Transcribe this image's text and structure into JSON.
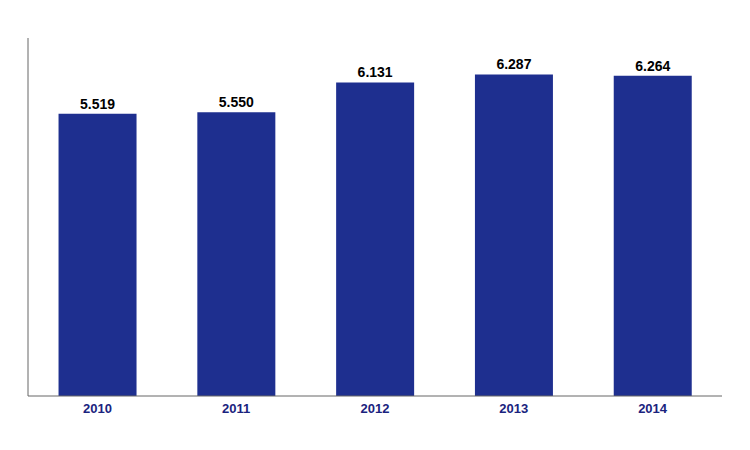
{
  "chart_data": {
    "type": "bar",
    "categories": [
      "2010",
      "2011",
      "2012",
      "2013",
      "2014"
    ],
    "values": [
      5.519,
      5.55,
      6.131,
      6.287,
      6.264
    ],
    "value_labels": [
      "5.519",
      "5.550",
      "6.131",
      "6.287",
      "6.264"
    ],
    "color": "#1e2f8f",
    "ylim": [
      0,
      7.0
    ],
    "grid": false,
    "data_labels": true,
    "tick_labels": "x"
  }
}
